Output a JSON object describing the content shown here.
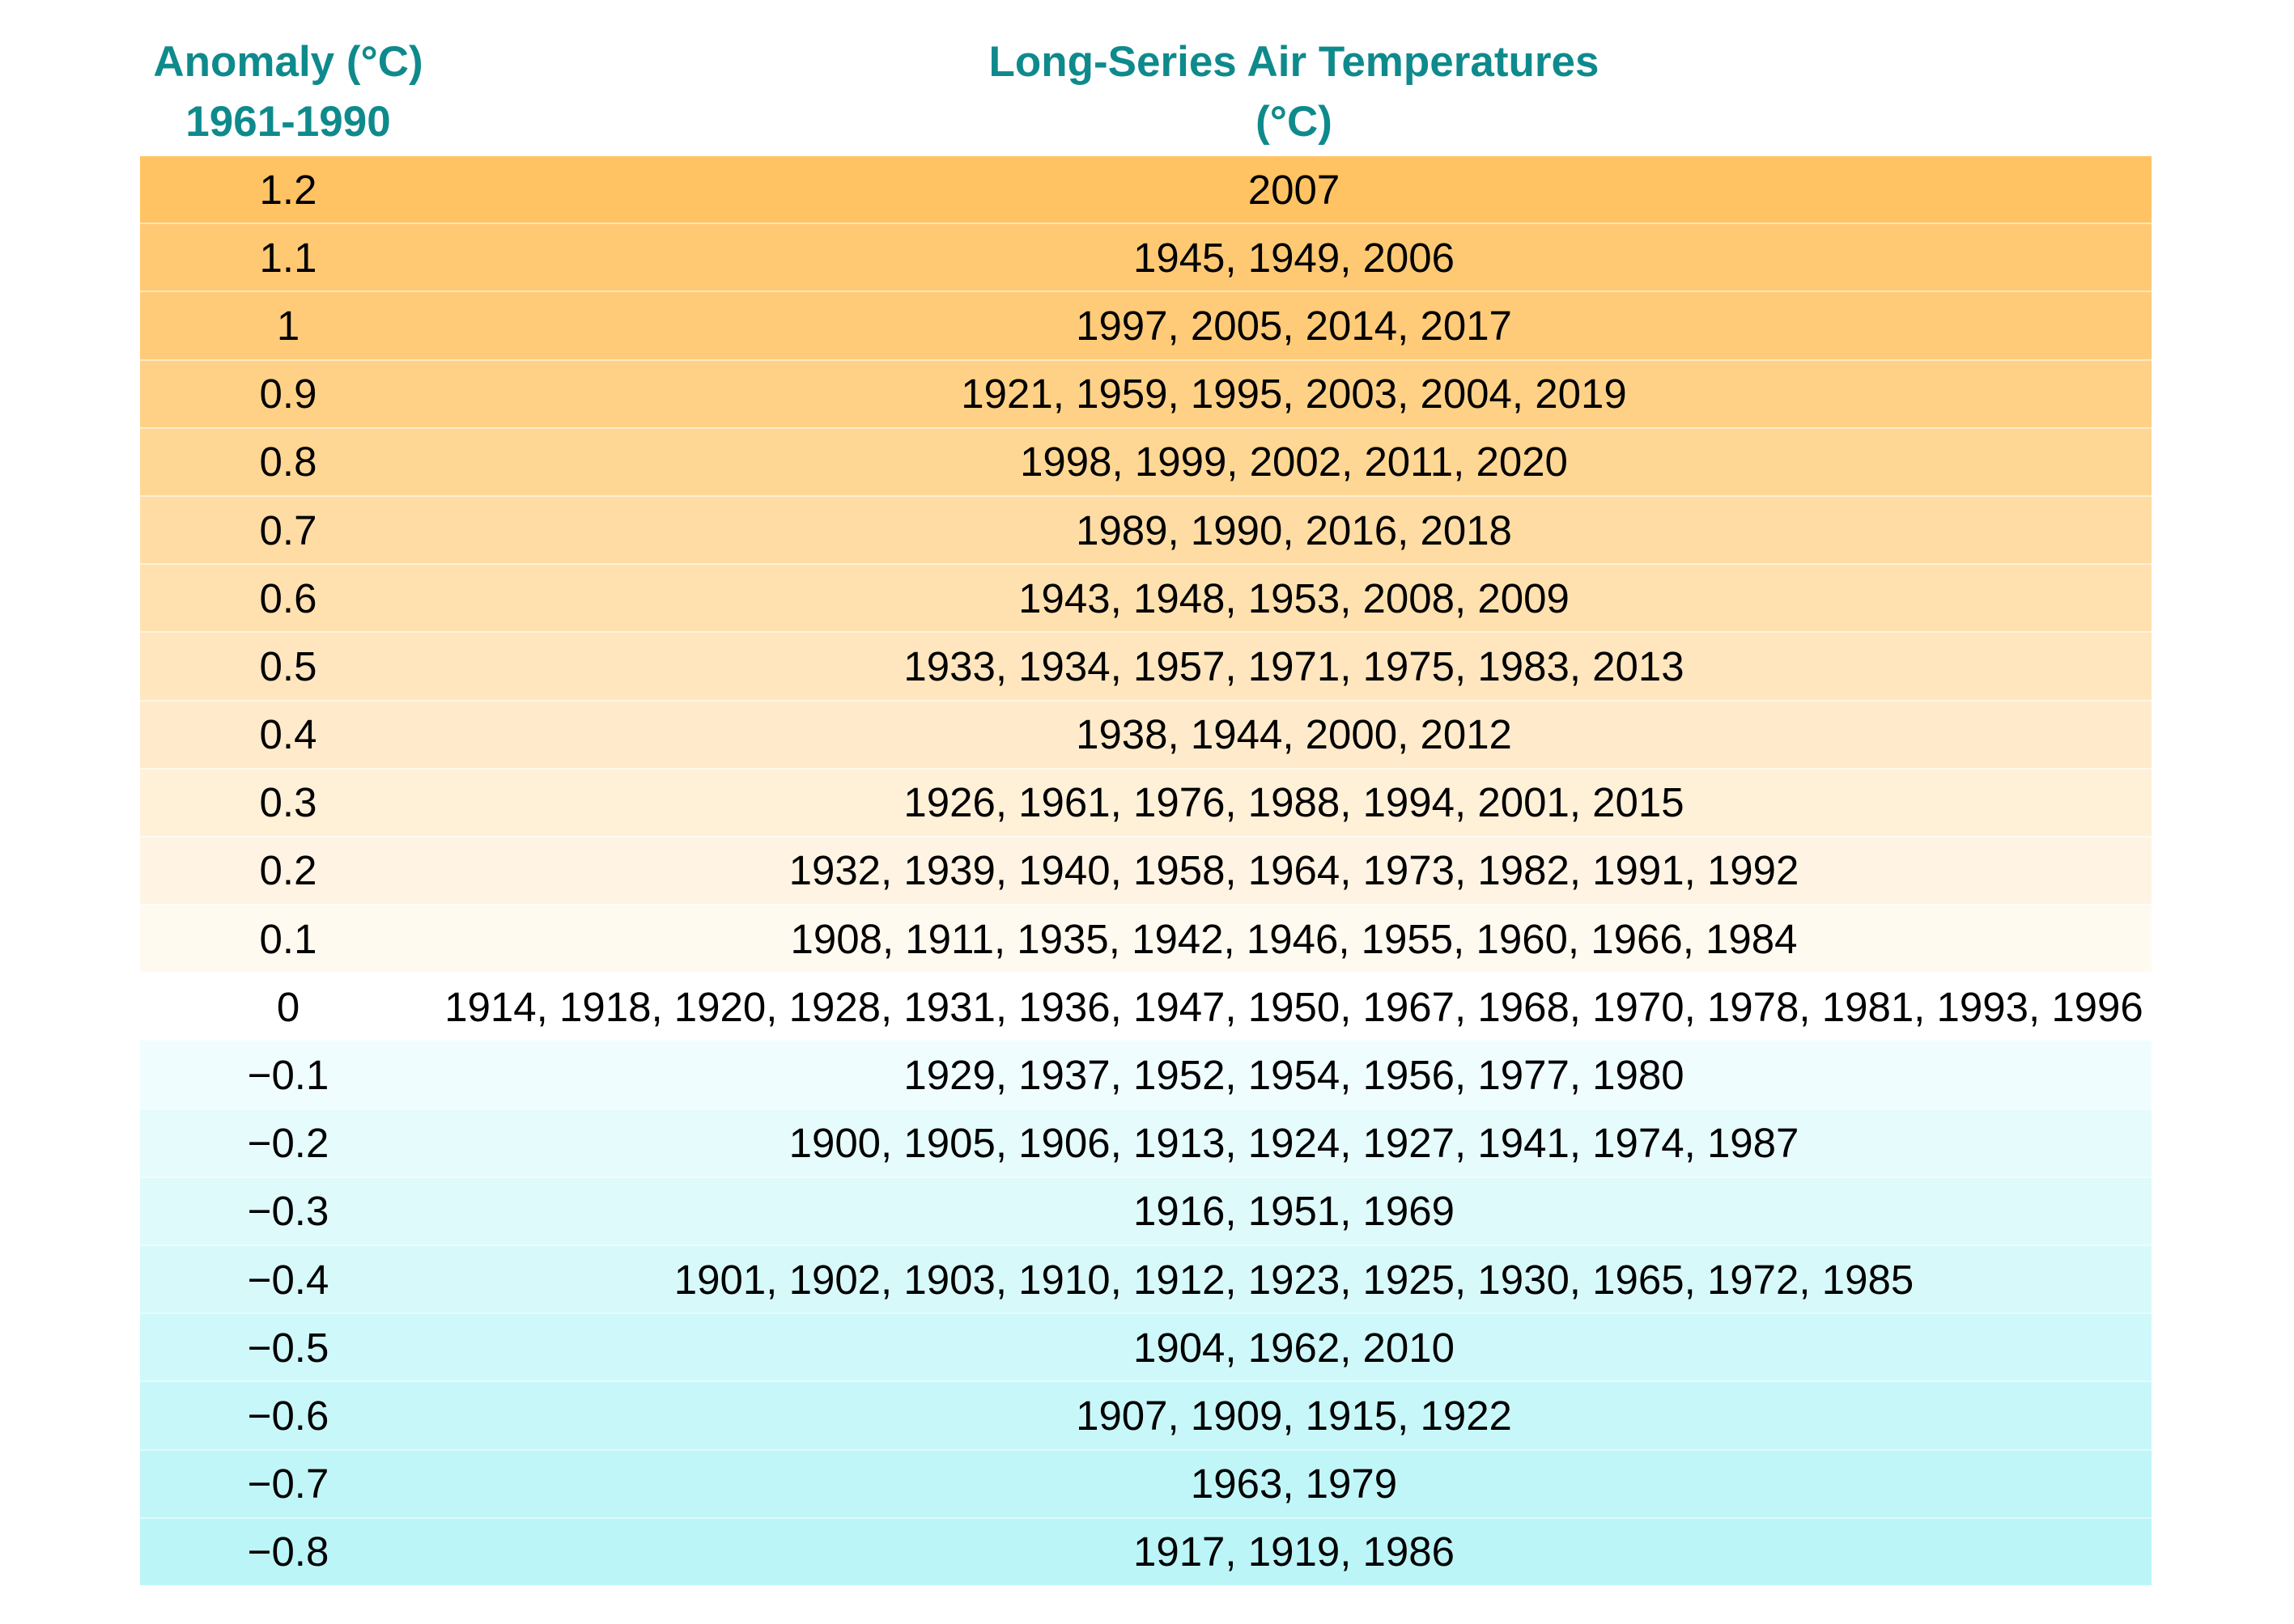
{
  "header": {
    "anomaly_title": "Anomaly (°C)",
    "anomaly_period": "1961-1990",
    "temps_title": "Long-Series Air Temperatures",
    "temps_unit": "(°C)"
  },
  "colors": {
    "header_text": "#0F8A8C",
    "body_text": "#000000",
    "background": "#FFFFFF",
    "row_separator": "rgba(255,255,255,0.5)",
    "warm_max": "#FFC364",
    "neutral": "#FFFFFF",
    "cool_max": "#BCF5F7"
  },
  "chart_data": {
    "type": "table",
    "title": "Long-Series Air Temperatures (°C)",
    "columns": [
      "Anomaly (°C) 1961-1990",
      "Long-Series Air Temperatures (°C)"
    ],
    "rows": [
      {
        "anomaly": "1.2",
        "years": [
          2007
        ],
        "color": "#FFC364"
      },
      {
        "anomaly": "1.1",
        "years": [
          1945,
          1949,
          2006
        ],
        "color": "#FFC974"
      },
      {
        "anomaly": "1",
        "years": [
          1997,
          2005,
          2014,
          2017
        ],
        "color": "#FFCB79"
      },
      {
        "anomaly": "0.9",
        "years": [
          1921,
          1959,
          1995,
          2003,
          2004,
          2019
        ],
        "color": "#FFD187"
      },
      {
        "anomaly": "0.8",
        "years": [
          1998,
          1999,
          2002,
          2011,
          2020
        ],
        "color": "#FFD794"
      },
      {
        "anomaly": "0.7",
        "years": [
          1989,
          1990,
          2016,
          2018
        ],
        "color": "#FFDCA4"
      },
      {
        "anomaly": "0.6",
        "years": [
          1943,
          1948,
          1953,
          2008,
          2009
        ],
        "color": "#FFE1AF"
      },
      {
        "anomaly": "0.5",
        "years": [
          1933,
          1934,
          1957,
          1971,
          1975,
          1983,
          2013
        ],
        "color": "#FFE6BE"
      },
      {
        "anomaly": "0.4",
        "years": [
          1938,
          1944,
          2000,
          2012
        ],
        "color": "#FFEBCB"
      },
      {
        "anomaly": "0.3",
        "years": [
          1926,
          1961,
          1976,
          1988,
          1994,
          2001,
          2015
        ],
        "color": "#FFF0D8"
      },
      {
        "anomaly": "0.2",
        "years": [
          1932,
          1939,
          1940,
          1958,
          1964,
          1973,
          1982,
          1991,
          1992
        ],
        "color": "#FFF4E3"
      },
      {
        "anomaly": "0.1",
        "years": [
          1908,
          1911,
          1935,
          1942,
          1946,
          1955,
          1960,
          1966,
          1984
        ],
        "color": "#FFFAF0"
      },
      {
        "anomaly": "0",
        "years": [
          1914,
          1918,
          1920,
          1928,
          1931,
          1936,
          1947,
          1950,
          1967,
          1968,
          1970,
          1978,
          1981,
          1993,
          1996
        ],
        "color": "#FFFFFF"
      },
      {
        "anomaly": "−0.1",
        "years": [
          1929,
          1937,
          1952,
          1954,
          1956,
          1977,
          1980
        ],
        "color": "#F0FDFE"
      },
      {
        "anomaly": "−0.2",
        "years": [
          1900,
          1905,
          1906,
          1913,
          1924,
          1927,
          1941,
          1974,
          1987
        ],
        "color": "#E6FBFC"
      },
      {
        "anomaly": "−0.3",
        "years": [
          1916,
          1951,
          1969
        ],
        "color": "#DFFAFB"
      },
      {
        "anomaly": "−0.4",
        "years": [
          1901,
          1902,
          1903,
          1910,
          1912,
          1923,
          1925,
          1930,
          1965,
          1972,
          1985
        ],
        "color": "#D8F9FA"
      },
      {
        "anomaly": "−0.5",
        "years": [
          1904,
          1962,
          2010
        ],
        "color": "#CEF8FA"
      },
      {
        "anomaly": "−0.6",
        "years": [
          1907,
          1909,
          1915,
          1922
        ],
        "color": "#C8F7F9"
      },
      {
        "anomaly": "−0.7",
        "years": [
          1963,
          1979
        ],
        "color": "#C1F6F8"
      },
      {
        "anomaly": "−0.8",
        "years": [
          1917,
          1919,
          1986
        ],
        "color": "#BCF5F7"
      }
    ]
  }
}
